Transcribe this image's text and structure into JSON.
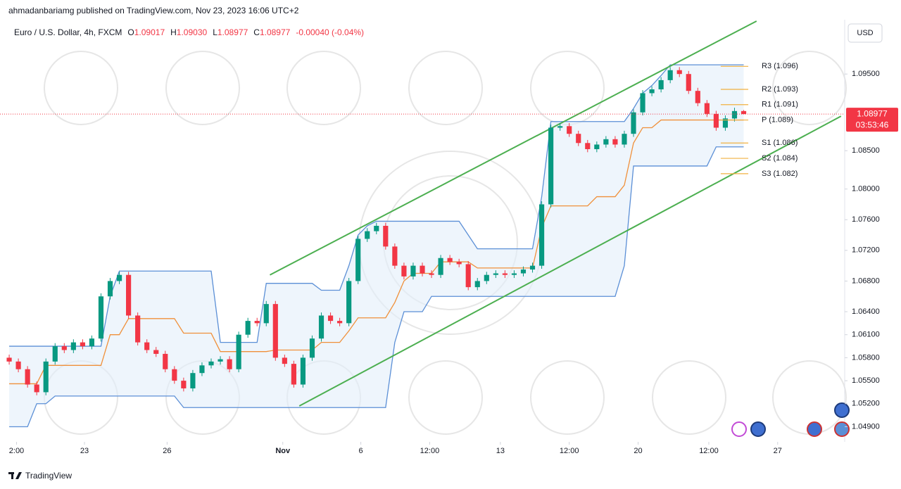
{
  "chart_data": {
    "type": "candlestick",
    "publisher_line": "ahmadanbariamg published on TradingView.com, Nov 23, 2023 16:06 UTC+2",
    "symbol": "Euro / U.S. Dollar, 4h, FXCM",
    "legend": [
      {
        "key": "O",
        "value": "1.09017"
      },
      {
        "key": "H",
        "value": "1.09030"
      },
      {
        "key": "L",
        "value": "1.08977"
      },
      {
        "key": "C",
        "value": "1.08977"
      }
    ],
    "change": "-0.00040 (-0.04%)",
    "currency": "USD",
    "brand": "TradingView",
    "up_color": "#089981",
    "down_color": "#f23645",
    "open": [
      1.058,
      1.0575,
      1.0565,
      1.0545,
      1.0535,
      1.0575,
      1.0595,
      1.059,
      1.06,
      1.0595,
      1.0605,
      1.066,
      1.068,
      1.0688,
      1.0635,
      1.06,
      1.059,
      1.0585,
      1.0565,
      1.055,
      1.054,
      1.056,
      1.057,
      1.0575,
      1.0578,
      1.0565,
      1.061,
      1.0628,
      1.0625,
      1.065,
      1.058,
      1.0572,
      1.0545,
      1.058,
      1.0605,
      1.0635,
      1.0628,
      1.0625,
      1.068,
      1.0735,
      1.0745,
      1.0752,
      1.0725,
      1.07,
      1.0686,
      1.07,
      1.069,
      1.0688,
      1.071,
      1.0705,
      1.0702,
      1.0672,
      1.068,
      1.0688,
      1.069,
      1.0688,
      1.069,
      1.0695,
      1.07,
      1.078,
      1.088,
      1.0882,
      1.0872,
      1.086,
      1.0852,
      1.0858,
      1.0865,
      1.0858,
      1.0872,
      1.09,
      1.0925,
      1.093,
      1.0942,
      1.0955,
      1.095,
      1.0928,
      1.0912,
      1.0898,
      1.088,
      1.0892,
      1.09017
    ],
    "high": [
      1.0584,
      1.0579,
      1.0569,
      1.0549,
      1.0579,
      1.0599,
      1.0599,
      1.0604,
      1.0604,
      1.0609,
      1.0664,
      1.0684,
      1.0692,
      1.0692,
      1.0639,
      1.0604,
      1.0594,
      1.0589,
      1.0569,
      1.0554,
      1.0564,
      1.0574,
      1.0579,
      1.0582,
      1.0582,
      1.0614,
      1.0632,
      1.0632,
      1.0654,
      1.0654,
      1.0584,
      1.0576,
      1.0584,
      1.0609,
      1.0639,
      1.0639,
      1.0632,
      1.0684,
      1.0739,
      1.0749,
      1.0756,
      1.0756,
      1.0729,
      1.0704,
      1.0704,
      1.0704,
      1.0694,
      1.0714,
      1.0714,
      1.0709,
      1.0706,
      1.0684,
      1.0692,
      1.0694,
      1.0694,
      1.0694,
      1.0699,
      1.0704,
      1.0784,
      1.0884,
      1.0886,
      1.0886,
      1.0876,
      1.0864,
      1.0862,
      1.0869,
      1.0869,
      1.0876,
      1.0904,
      1.0929,
      1.0934,
      1.0946,
      1.0959,
      1.0959,
      1.0954,
      1.0932,
      1.0916,
      1.0902,
      1.0896,
      1.0906,
      1.0903
    ],
    "low": [
      1.0571,
      1.0561,
      1.0541,
      1.0531,
      1.0531,
      1.0571,
      1.0586,
      1.0586,
      1.0591,
      1.0591,
      1.0601,
      1.0656,
      1.0676,
      1.0631,
      1.0596,
      1.0586,
      1.0581,
      1.0561,
      1.0546,
      1.0536,
      1.0536,
      1.0556,
      1.0566,
      1.0571,
      1.0561,
      1.0561,
      1.0606,
      1.0621,
      1.0621,
      1.0576,
      1.0568,
      1.0541,
      1.0541,
      1.0576,
      1.0601,
      1.0624,
      1.0621,
      1.0621,
      1.0676,
      1.0731,
      1.0741,
      1.0721,
      1.0696,
      1.0682,
      1.0682,
      1.0686,
      1.0684,
      1.0684,
      1.0701,
      1.0698,
      1.0668,
      1.0668,
      1.0676,
      1.0684,
      1.0684,
      1.0684,
      1.0686,
      1.0691,
      1.0696,
      1.0776,
      1.0876,
      1.0868,
      1.0856,
      1.0848,
      1.0848,
      1.0854,
      1.0854,
      1.0854,
      1.0868,
      1.0896,
      1.0921,
      1.0926,
      1.0938,
      1.0946,
      1.0924,
      1.0908,
      1.0894,
      1.0876,
      1.0876,
      1.0888,
      1.08977
    ],
    "close": [
      1.0575,
      1.0565,
      1.0545,
      1.0535,
      1.0575,
      1.0595,
      1.059,
      1.06,
      1.0595,
      1.0605,
      1.066,
      1.068,
      1.0688,
      1.0635,
      1.06,
      1.059,
      1.0585,
      1.0565,
      1.055,
      1.054,
      1.056,
      1.057,
      1.0575,
      1.0578,
      1.0565,
      1.061,
      1.0628,
      1.0625,
      1.065,
      1.058,
      1.0572,
      1.0545,
      1.058,
      1.0605,
      1.0635,
      1.0628,
      1.0625,
      1.068,
      1.0735,
      1.0745,
      1.0752,
      1.0725,
      1.07,
      1.0686,
      1.07,
      1.069,
      1.0688,
      1.071,
      1.0705,
      1.0702,
      1.0672,
      1.068,
      1.0688,
      1.069,
      1.0688,
      1.069,
      1.0695,
      1.07,
      1.078,
      1.088,
      1.0882,
      1.0872,
      1.086,
      1.0852,
      1.0858,
      1.0865,
      1.0858,
      1.0872,
      1.09,
      1.0925,
      1.093,
      1.0942,
      1.0955,
      1.095,
      1.0928,
      1.0912,
      1.0898,
      1.088,
      1.0892,
      1.09017,
      1.08977
    ],
    "bands": [
      {
        "color": "#5b8fd6",
        "values": [
          1.0595,
          1.0595,
          1.0595,
          1.0595,
          1.0595,
          1.0595,
          1.0595,
          1.0595,
          1.0595,
          1.0595,
          1.0595,
          1.066,
          1.0693,
          1.0693,
          1.0693,
          1.0693,
          1.0693,
          1.0693,
          1.0693,
          1.0693,
          1.0693,
          1.0693,
          1.0693,
          1.06,
          1.06,
          1.06,
          1.06,
          1.06,
          1.0677,
          1.0677,
          1.0677,
          1.0677,
          1.0677,
          1.0677,
          1.0668,
          1.0668,
          1.0668,
          1.07,
          1.074,
          1.0752,
          1.0758,
          1.0758,
          1.0758,
          1.0758,
          1.0758,
          1.0758,
          1.0758,
          1.0758,
          1.0758,
          1.0758,
          1.074,
          1.0722,
          1.0722,
          1.0722,
          1.0722,
          1.0722,
          1.0722,
          1.0722,
          1.079,
          1.0888,
          1.0888,
          1.0888,
          1.0888,
          1.0888,
          1.0888,
          1.0888,
          1.0888,
          1.0888,
          1.0905,
          1.0925,
          1.0935,
          1.0948,
          1.0962,
          1.0962,
          1.0962,
          1.0962,
          1.0962,
          1.0962,
          1.0962,
          1.0962,
          1.0962
        ]
      },
      {
        "color": "#5b8fd6",
        "values": [
          1.049,
          1.049,
          1.049,
          1.052,
          1.052,
          1.053,
          1.053,
          1.053,
          1.053,
          1.053,
          1.053,
          1.053,
          1.053,
          1.053,
          1.053,
          1.053,
          1.053,
          1.053,
          1.053,
          1.0515,
          1.0515,
          1.0515,
          1.0515,
          1.0515,
          1.0515,
          1.0515,
          1.0515,
          1.0515,
          1.0515,
          1.0515,
          1.0515,
          1.0515,
          1.0515,
          1.0515,
          1.0515,
          1.0515,
          1.0515,
          1.0515,
          1.0515,
          1.0515,
          1.0515,
          1.0515,
          1.06,
          1.064,
          1.064,
          1.064,
          1.066,
          1.066,
          1.066,
          1.066,
          1.066,
          1.066,
          1.066,
          1.066,
          1.066,
          1.066,
          1.066,
          1.066,
          1.066,
          1.066,
          1.066,
          1.066,
          1.066,
          1.066,
          1.066,
          1.066,
          1.066,
          1.07,
          1.083,
          1.083,
          1.083,
          1.083,
          1.083,
          1.083,
          1.083,
          1.083,
          1.083,
          1.0855,
          1.0855,
          1.0855,
          1.0855
        ]
      },
      {
        "color": "#f0903a",
        "values": [
          1.0546,
          1.0546,
          1.0546,
          1.0546,
          1.057,
          1.057,
          1.057,
          1.057,
          1.057,
          1.057,
          1.057,
          1.061,
          1.061,
          1.0631,
          1.0631,
          1.0631,
          1.0631,
          1.0631,
          1.0631,
          1.0612,
          1.0612,
          1.0612,
          1.0612,
          1.0588,
          1.0588,
          1.0588,
          1.0588,
          1.0588,
          1.0588,
          1.059,
          1.059,
          1.059,
          1.059,
          1.059,
          1.06,
          1.06,
          1.06,
          1.0615,
          1.0632,
          1.0632,
          1.0632,
          1.0632,
          1.0652,
          1.068,
          1.069,
          1.069,
          1.069,
          1.0705,
          1.0705,
          1.0705,
          1.0705,
          1.0697,
          1.0697,
          1.0697,
          1.0697,
          1.0697,
          1.0697,
          1.0697,
          1.075,
          1.0778,
          1.0778,
          1.0778,
          1.0778,
          1.0778,
          1.079,
          1.079,
          1.079,
          1.0805,
          1.086,
          1.088,
          1.088,
          1.089,
          1.089,
          1.089,
          1.089,
          1.089,
          1.089,
          1.089,
          1.089,
          1.089,
          1.089
        ]
      }
    ],
    "trendlines": [
      {
        "color": "#4caf50",
        "x": [
          28.4,
          81.4
        ],
        "y": [
          1.0688,
          1.1019
        ]
      },
      {
        "color": "#4caf50",
        "x": [
          31.6,
          90.6
        ],
        "y": [
          1.0517,
          1.0895
        ]
      }
    ],
    "pivots": {
      "color": "#f0b040",
      "levels": [
        {
          "label": "R3 (1.096)",
          "value": 1.096
        },
        {
          "label": "R2 (1.093)",
          "value": 1.093
        },
        {
          "label": "R1 (1.091)",
          "value": 1.091
        },
        {
          "label": "P (1.089)",
          "value": 1.089
        },
        {
          "label": "S1 (1.086)",
          "value": 1.086
        },
        {
          "label": "S2 (1.084)",
          "value": 1.084
        },
        {
          "label": "S3 (1.082)",
          "value": 1.082
        }
      ]
    },
    "last_price": {
      "value": 1.08977,
      "label": "1.08977"
    },
    "countdown": "03:53:46",
    "xlim": [
      -1,
      91
    ],
    "xticks": [
      {
        "value": 0.8,
        "label": "2:00"
      },
      {
        "value": 8.2,
        "label": "23"
      },
      {
        "value": 17.2,
        "label": "26"
      },
      {
        "value": 29.8,
        "label": "Nov"
      },
      {
        "value": 38.3,
        "label": "6"
      },
      {
        "value": 45.8,
        "label": "12:00"
      },
      {
        "value": 53.5,
        "label": "13"
      },
      {
        "value": 61,
        "label": "12:00"
      },
      {
        "value": 68.5,
        "label": "20"
      },
      {
        "value": 76.2,
        "label": "12:00"
      },
      {
        "value": 83.7,
        "label": "27"
      }
    ],
    "ylim": [
      1.0473,
      1.1019
    ],
    "yticks": [
      {
        "value": 1.095,
        "label": "1.09500"
      },
      {
        "value": 1.085,
        "label": "1.08500"
      },
      {
        "value": 1.08,
        "label": "1.08000"
      },
      {
        "value": 1.076,
        "label": "1.07600"
      },
      {
        "value": 1.072,
        "label": "1.07200"
      },
      {
        "value": 1.068,
        "label": "1.06800"
      },
      {
        "value": 1.064,
        "label": "1.06400"
      },
      {
        "value": 1.061,
        "label": "1.06100"
      },
      {
        "value": 1.058,
        "label": "1.05800"
      },
      {
        "value": 1.055,
        "label": "1.05500"
      },
      {
        "value": 1.052,
        "label": "1.05200"
      },
      {
        "value": 1.049,
        "label": "1.04900"
      }
    ],
    "grid": false
  }
}
